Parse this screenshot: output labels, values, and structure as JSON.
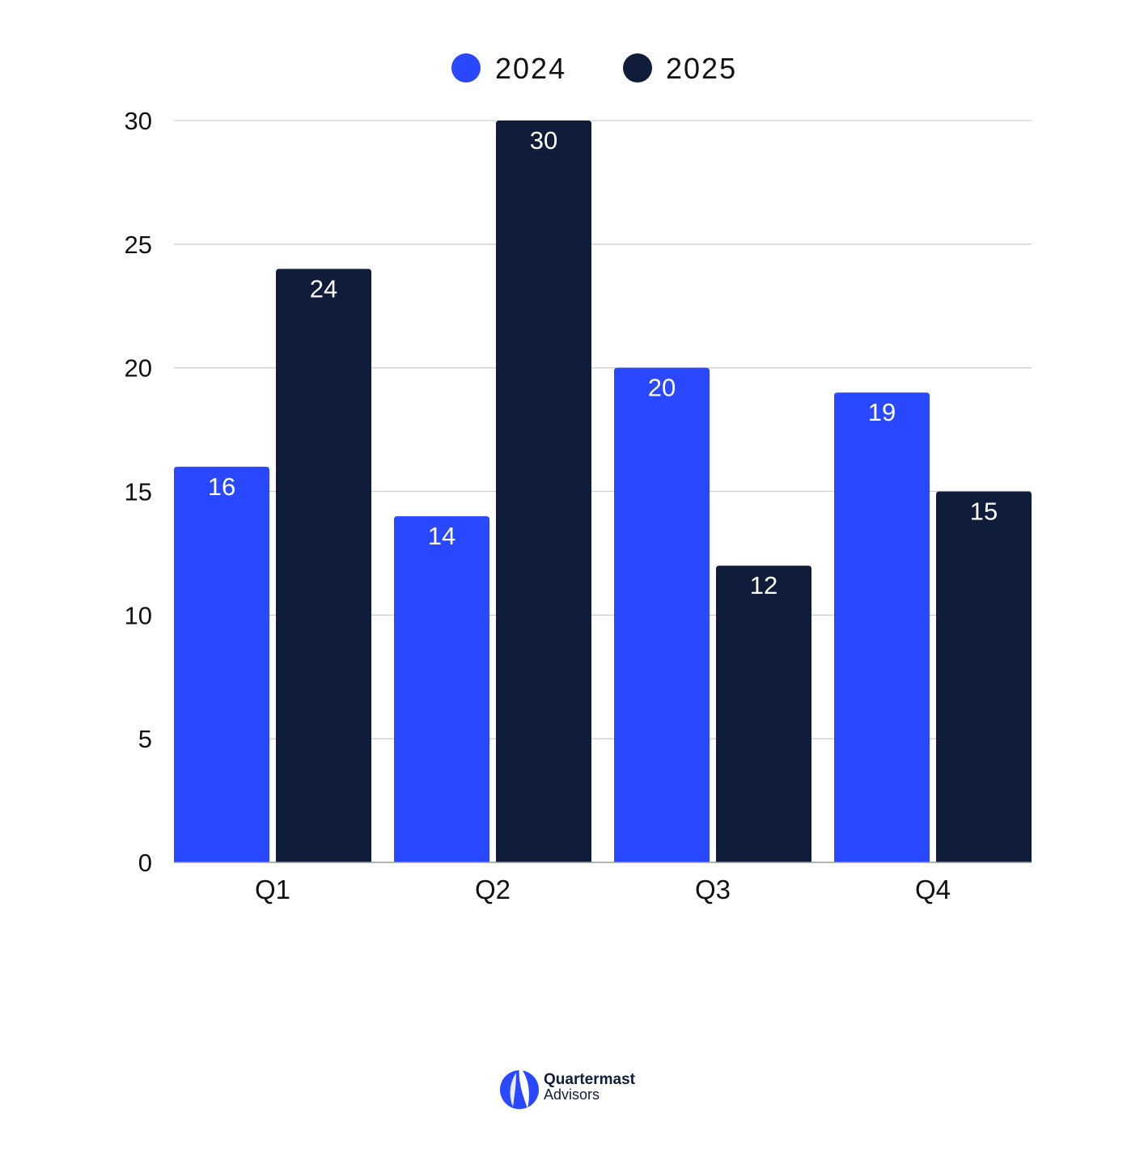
{
  "colors": {
    "series_2024": "#2a48ff",
    "series_2025": "#0f1c3a",
    "grid": "#cfcfcf",
    "axis": "#9a9a9a",
    "text": "#111111"
  },
  "chart_data": {
    "type": "bar",
    "categories": [
      "Q1",
      "Q2",
      "Q3",
      "Q4"
    ],
    "series": [
      {
        "name": "2024",
        "values": [
          16,
          14,
          20,
          19
        ]
      },
      {
        "name": "2025",
        "values": [
          24,
          30,
          12,
          15
        ]
      }
    ],
    "title": "",
    "xlabel": "",
    "ylabel": "",
    "ylim": [
      0,
      30
    ],
    "yticks": [
      0,
      5,
      10,
      15,
      20,
      25,
      30
    ],
    "grid": true,
    "legend": "top-center",
    "data_labels": true
  },
  "logo": {
    "name": "Quartermast",
    "sub": "Advisors",
    "icon": "sail-icon"
  }
}
